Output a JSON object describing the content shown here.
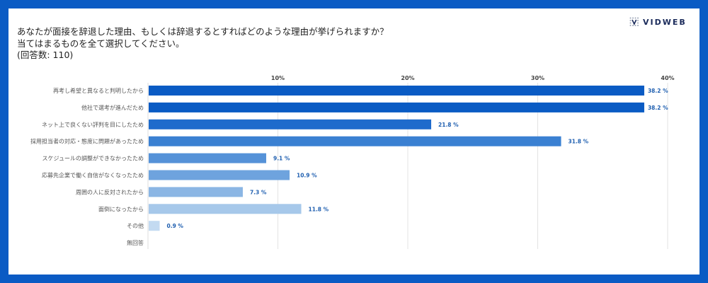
{
  "title_lines": [
    "あなたが面接を辞退した理由、もしくは辞退するとすればどのような理由が挙げられますか？",
    "当てはまるものを全て選択してください。",
    "(回答数: 110)"
  ],
  "logo": {
    "text": "VIDWEB"
  },
  "colors": {
    "border": "#0a5bc4",
    "label": "#1f5fb0"
  },
  "chart_data": {
    "type": "bar",
    "orientation": "horizontal",
    "categories": [
      "再考し希望と異なると判明したから",
      "他社で選考が進んだため",
      "ネット上で良くない評判を目にしたため",
      "採用担当者の対応・態度に問題があったため",
      "スケジュールの調整ができなかったため",
      "応募先企業で働く自信がなくなったため",
      "周囲の人に反対されたから",
      "面倒になったから",
      "その他",
      "無回答"
    ],
    "values": [
      38.2,
      38.2,
      21.8,
      31.8,
      9.1,
      10.9,
      7.3,
      11.8,
      0.9,
      0
    ],
    "value_labels": [
      "38.2 %",
      "38.2 %",
      "21.8 %",
      "31.8 %",
      "9.1 %",
      "10.9 %",
      "7.3 %",
      "11.8 %",
      "0.9 %",
      ""
    ],
    "bar_colors": [
      "#0a5bc4",
      "#0a5bc4",
      "#1e6bcc",
      "#3a80d2",
      "#5592d8",
      "#6ea3de",
      "#8bb6e4",
      "#a6c8ea",
      "#c3daf1",
      "#dbe8f6"
    ],
    "xlim": [
      0,
      40
    ],
    "xticks": [
      10,
      20,
      30,
      40
    ],
    "xtick_labels": [
      "10%",
      "20%",
      "30%",
      "40%"
    ],
    "tick_position": "top",
    "grid": true
  }
}
